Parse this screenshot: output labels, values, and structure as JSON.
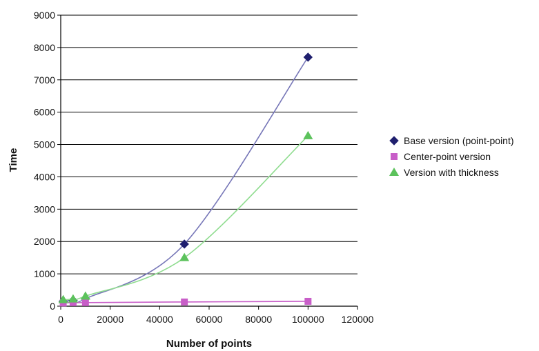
{
  "chart_data": {
    "type": "scatter",
    "title": "",
    "xlabel": "Number of points",
    "ylabel": "Time",
    "xlim": [
      0,
      120000
    ],
    "ylim": [
      0,
      9000
    ],
    "xticks": [
      0,
      20000,
      40000,
      60000,
      80000,
      100000,
      120000
    ],
    "yticks": [
      0,
      1000,
      2000,
      3000,
      4000,
      5000,
      6000,
      7000,
      8000,
      9000
    ],
    "grid": "horizontal",
    "legend_position": "right",
    "series": [
      {
        "name": "Base version (point-point)",
        "marker": "diamond",
        "color": "#1f1f6e",
        "line_color": "#7777b8",
        "x": [
          1000,
          5000,
          10000,
          50000,
          100000
        ],
        "y": [
          150,
          180,
          230,
          1920,
          7700
        ]
      },
      {
        "name": "Center-point version",
        "marker": "square",
        "color": "#c85ec8",
        "line_color": "#c85ec8",
        "x": [
          1000,
          5000,
          10000,
          50000,
          100000
        ],
        "y": [
          100,
          110,
          110,
          130,
          150
        ]
      },
      {
        "name": "Version with thickness",
        "marker": "triangle",
        "color": "#5cc25c",
        "line_color": "#8fdc8f",
        "x": [
          1000,
          5000,
          10000,
          50000,
          100000
        ],
        "y": [
          200,
          220,
          310,
          1500,
          5270
        ]
      }
    ]
  }
}
